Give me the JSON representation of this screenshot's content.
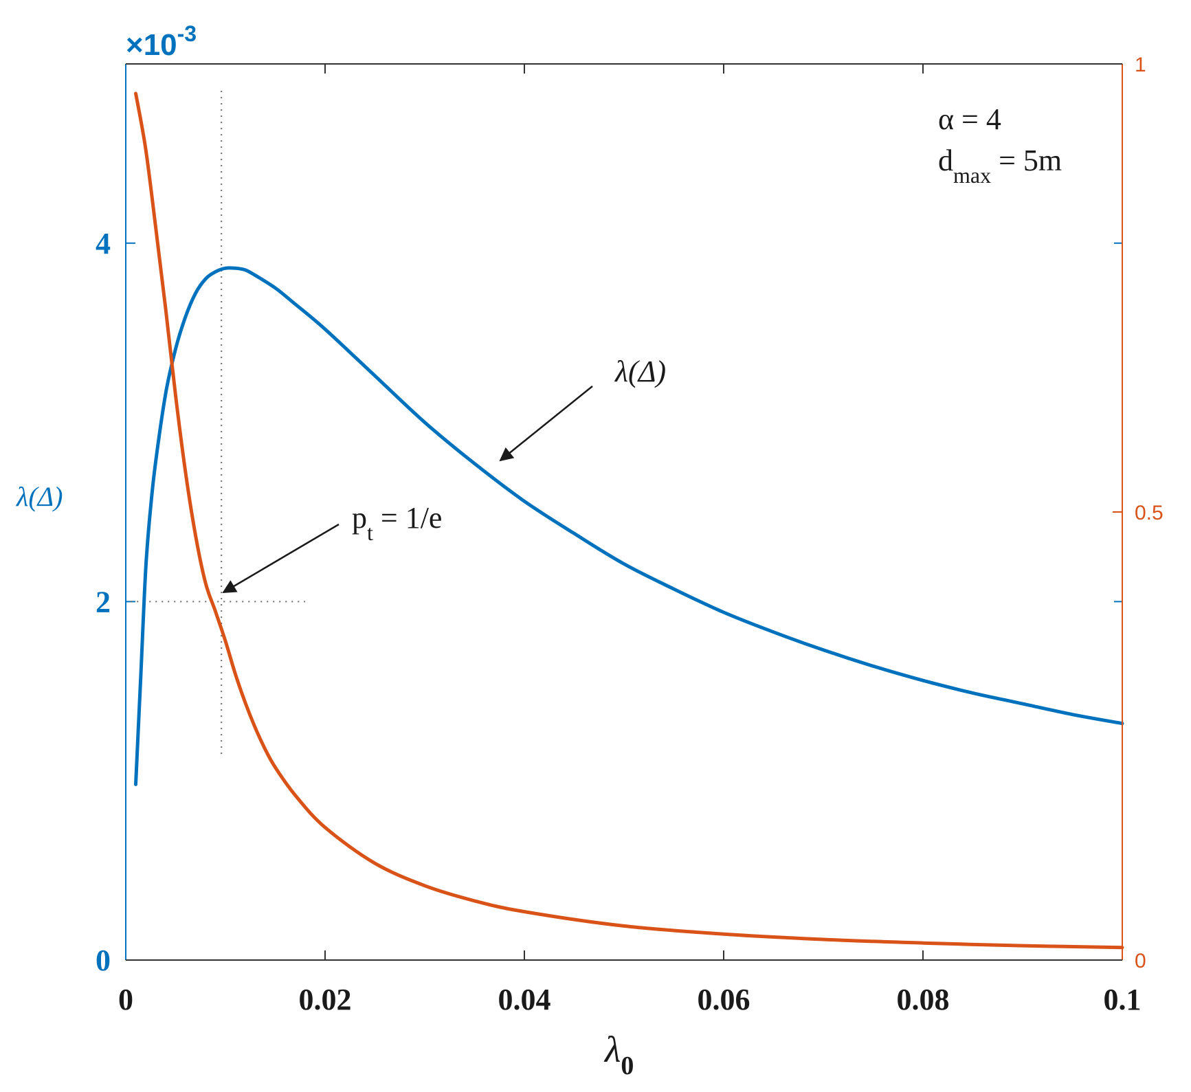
{
  "chart_data": {
    "type": "line",
    "x_label": "λ",
    "x_label_sub": "0",
    "y_left_label": "λ(Δ)",
    "y_left_multiplier": "×10",
    "y_left_multiplier_exp": "-3",
    "xlim": [
      0,
      0.1
    ],
    "y_left_lim": [
      0,
      5
    ],
    "y_right_lim": [
      0,
      1
    ],
    "x_ticks": [
      0,
      0.02,
      0.04,
      0.06,
      0.08,
      0.1
    ],
    "x_tick_labels": [
      "0",
      "0.02",
      "0.04",
      "0.06",
      "0.08",
      "0.1"
    ],
    "y_left_ticks": [
      0,
      2,
      4
    ],
    "y_left_tick_labels": [
      "0",
      "2",
      "4"
    ],
    "y_right_ticks": [
      0,
      0.5,
      1
    ],
    "y_right_tick_labels": [
      "0",
      "0.5",
      "1"
    ],
    "colors": {
      "left_series": "#0072BD",
      "right_series": "#D95319",
      "axis": "#333333",
      "guide": "#666666"
    },
    "series": [
      {
        "axis": "left",
        "color": "#0072BD",
        "x": [
          0.001,
          0.0015,
          0.002,
          0.0025,
          0.003,
          0.004,
          0.005,
          0.006,
          0.007,
          0.008,
          0.009,
          0.01,
          0.011,
          0.012,
          0.013,
          0.015,
          0.017,
          0.02,
          0.025,
          0.03,
          0.035,
          0.04,
          0.045,
          0.05,
          0.055,
          0.06,
          0.065,
          0.07,
          0.075,
          0.08,
          0.085,
          0.09,
          0.095,
          0.1
        ],
        "y": [
          0.98,
          1.58,
          2.18,
          2.53,
          2.78,
          3.16,
          3.41,
          3.59,
          3.72,
          3.8,
          3.84,
          3.86,
          3.86,
          3.85,
          3.82,
          3.75,
          3.66,
          3.52,
          3.26,
          3.0,
          2.77,
          2.56,
          2.38,
          2.21,
          2.07,
          1.94,
          1.83,
          1.73,
          1.64,
          1.56,
          1.49,
          1.43,
          1.37,
          1.32
        ]
      },
      {
        "axis": "right",
        "color": "#D95319",
        "x": [
          0.001,
          0.002,
          0.003,
          0.004,
          0.005,
          0.006,
          0.007,
          0.008,
          0.009,
          0.01,
          0.011,
          0.012,
          0.013,
          0.014,
          0.015,
          0.017,
          0.02,
          0.025,
          0.03,
          0.035,
          0.04,
          0.05,
          0.06,
          0.07,
          0.08,
          0.09,
          0.1
        ],
        "y": [
          0.967,
          0.905,
          0.818,
          0.727,
          0.63,
          0.544,
          0.474,
          0.421,
          0.389,
          0.356,
          0.319,
          0.287,
          0.259,
          0.235,
          0.215,
          0.184,
          0.148,
          0.108,
          0.083,
          0.066,
          0.054,
          0.038,
          0.029,
          0.023,
          0.019,
          0.016,
          0.014
        ]
      }
    ],
    "guides": {
      "vertical_x": 0.0096,
      "vertical_y_range": [
        1.15,
        4.85
      ],
      "horizontal_y": 2.0,
      "horizontal_x_range": [
        0.0005,
        0.018
      ]
    },
    "annotations": {
      "curve_label": "λ(Δ)",
      "pt_label_prefix": "p",
      "pt_label_sub": "t",
      "pt_label_suffix": " = 1/e",
      "alpha_text": "α = 4",
      "dmax_prefix": "d",
      "dmax_sub": "max",
      "dmax_suffix": " = 5m"
    }
  }
}
